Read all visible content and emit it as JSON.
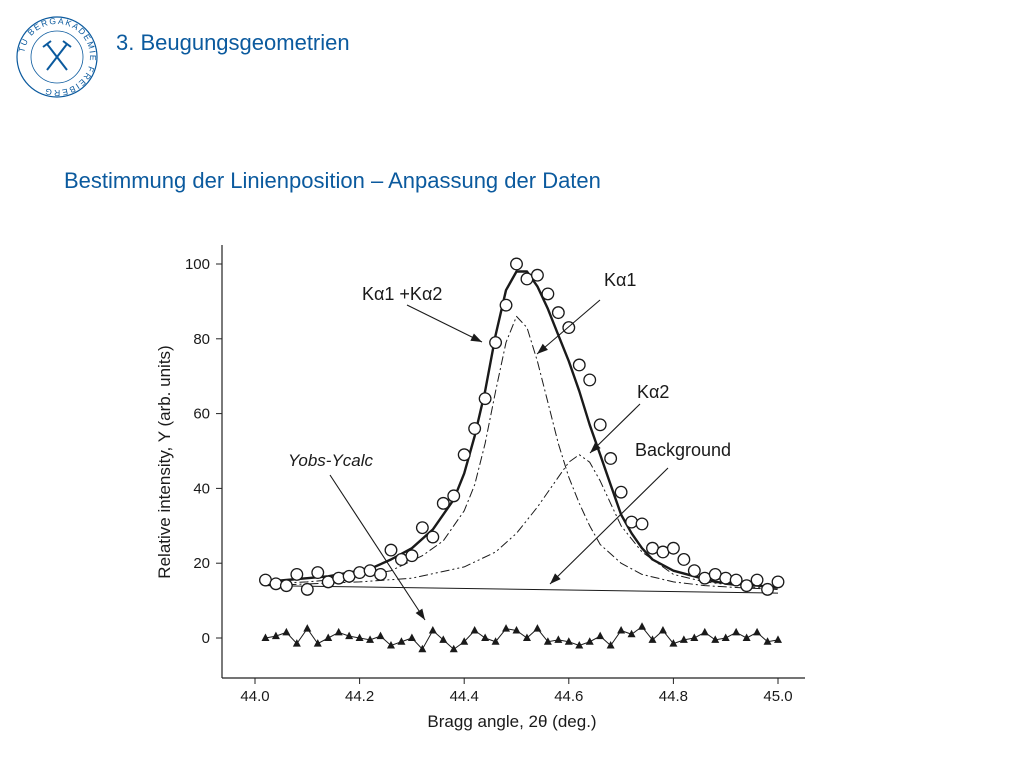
{
  "header": {
    "title": "3. Beugungsgeometrien",
    "logo_text": "TU BERGAKADEMIE FREIBERG"
  },
  "subtitle": "Bestimmung der Linienposition – Anpassung der Daten",
  "colors": {
    "brand": "#0b5a9e",
    "ink": "#1a1a1a"
  },
  "chart_data": {
    "type": "scatter",
    "xlabel": "Bragg angle, 2θ (deg.)",
    "ylabel": "Relative intensity, Y (arb. units)",
    "xlim": [
      44.0,
      45.0
    ],
    "ylim": [
      -10,
      105
    ],
    "xticks": [
      "44.0",
      "44.2",
      "44.4",
      "44.6",
      "44.8",
      "45.0"
    ],
    "yticks": [
      "0",
      "20",
      "40",
      "60",
      "80",
      "100"
    ],
    "grid": false,
    "annotations": {
      "sum_label": "Kα1 +Kα2",
      "ka1_label": "Kα1",
      "ka2_label": "Kα2",
      "background_label": "Background",
      "residual_label": "Yobs-Ycalc"
    },
    "series": [
      {
        "name": "Yobs",
        "style": "open-circles",
        "x": [
          44.02,
          44.04,
          44.06,
          44.08,
          44.1,
          44.12,
          44.14,
          44.16,
          44.18,
          44.2,
          44.22,
          44.24,
          44.26,
          44.28,
          44.3,
          44.32,
          44.34,
          44.36,
          44.38,
          44.4,
          44.42,
          44.44,
          44.46,
          44.48,
          44.5,
          44.52,
          44.54,
          44.56,
          44.58,
          44.6,
          44.62,
          44.64,
          44.66,
          44.68,
          44.7,
          44.72,
          44.74,
          44.76,
          44.78,
          44.8,
          44.82,
          44.84,
          44.86,
          44.88,
          44.9,
          44.92,
          44.94,
          44.96,
          44.98,
          45.0
        ],
        "y": [
          15.5,
          14.5,
          14,
          17,
          13,
          17.5,
          15,
          16,
          16.5,
          17.5,
          18,
          17,
          23.5,
          21,
          22,
          29.5,
          27,
          36,
          38,
          49,
          56,
          64,
          79,
          89,
          100,
          96,
          97,
          92,
          87,
          83,
          73,
          69,
          57,
          48,
          39,
          31,
          30.5,
          24,
          23,
          24,
          21,
          18,
          16,
          17,
          16,
          15.5,
          14,
          15.5,
          13,
          15
        ]
      },
      {
        "name": "Kα1 +Kα2",
        "style": "thick-solid",
        "x": [
          44.02,
          44.06,
          44.1,
          44.14,
          44.18,
          44.22,
          44.26,
          44.3,
          44.34,
          44.38,
          44.4,
          44.42,
          44.44,
          44.46,
          44.48,
          44.5,
          44.52,
          44.54,
          44.56,
          44.58,
          44.6,
          44.62,
          44.64,
          44.66,
          44.68,
          44.7,
          44.72,
          44.74,
          44.76,
          44.8,
          44.84,
          44.88,
          44.92,
          44.96,
          45.0
        ],
        "y": [
          15,
          15.5,
          16,
          16.5,
          17.5,
          18.5,
          21,
          24,
          29,
          37,
          44,
          54,
          66,
          81,
          93,
          98,
          98,
          94,
          88,
          81,
          74,
          66,
          57,
          49,
          41,
          33,
          28,
          24,
          21,
          18,
          16.5,
          15,
          14.5,
          14,
          13.5
        ]
      },
      {
        "name": "Kα1",
        "style": "dash-dot",
        "x": [
          44.02,
          44.1,
          44.18,
          44.26,
          44.32,
          44.36,
          44.4,
          44.42,
          44.44,
          44.46,
          44.48,
          44.5,
          44.52,
          44.54,
          44.56,
          44.58,
          44.6,
          44.62,
          44.64,
          44.66,
          44.7,
          44.74,
          44.8,
          44.86,
          44.92,
          45.0
        ],
        "y": [
          14.5,
          15,
          16,
          18,
          22,
          26,
          34,
          41,
          52,
          66,
          79,
          86,
          83,
          74,
          63,
          52,
          43,
          36,
          30,
          25,
          20,
          17,
          15,
          14,
          13.5,
          13
        ]
      },
      {
        "name": "Kα2",
        "style": "dash-dot-dot",
        "x": [
          44.02,
          44.2,
          44.3,
          44.4,
          44.46,
          44.5,
          44.54,
          44.58,
          44.6,
          44.62,
          44.64,
          44.66,
          44.68,
          44.7,
          44.74,
          44.8,
          44.86,
          44.92,
          45.0
        ],
        "y": [
          14,
          15,
          16,
          19,
          23,
          28,
          35,
          43,
          47,
          49,
          47,
          42,
          36,
          30,
          23,
          17,
          15,
          14,
          13
        ]
      },
      {
        "name": "Background",
        "style": "thin-solid",
        "x": [
          44.02,
          45.0
        ],
        "y": [
          14,
          12
        ]
      },
      {
        "name": "Yobs-Ycalc",
        "style": "filled-triangles",
        "x": [
          44.02,
          44.04,
          44.06,
          44.08,
          44.1,
          44.12,
          44.14,
          44.16,
          44.18,
          44.2,
          44.22,
          44.24,
          44.26,
          44.28,
          44.3,
          44.32,
          44.34,
          44.36,
          44.38,
          44.4,
          44.42,
          44.44,
          44.46,
          44.48,
          44.5,
          44.52,
          44.54,
          44.56,
          44.58,
          44.6,
          44.62,
          44.64,
          44.66,
          44.68,
          44.7,
          44.72,
          44.74,
          44.76,
          44.78,
          44.8,
          44.82,
          44.84,
          44.86,
          44.88,
          44.9,
          44.92,
          44.94,
          44.96,
          44.98,
          45.0
        ],
        "y": [
          0,
          0.5,
          1.5,
          -1.5,
          2.5,
          -1.5,
          0,
          1.5,
          0.5,
          0,
          -0.5,
          0.5,
          -2,
          -1,
          0,
          -3,
          2,
          -0.5,
          -3,
          -1,
          2,
          0,
          -1,
          2.5,
          2,
          0,
          2.5,
          -1,
          -0.5,
          -1,
          -2,
          -1,
          0.5,
          -2,
          2,
          1,
          3,
          -0.5,
          2,
          -1.5,
          -0.5,
          0,
          1.5,
          -0.5,
          0,
          1.5,
          0,
          1.5,
          -1,
          -0.5
        ]
      }
    ]
  }
}
